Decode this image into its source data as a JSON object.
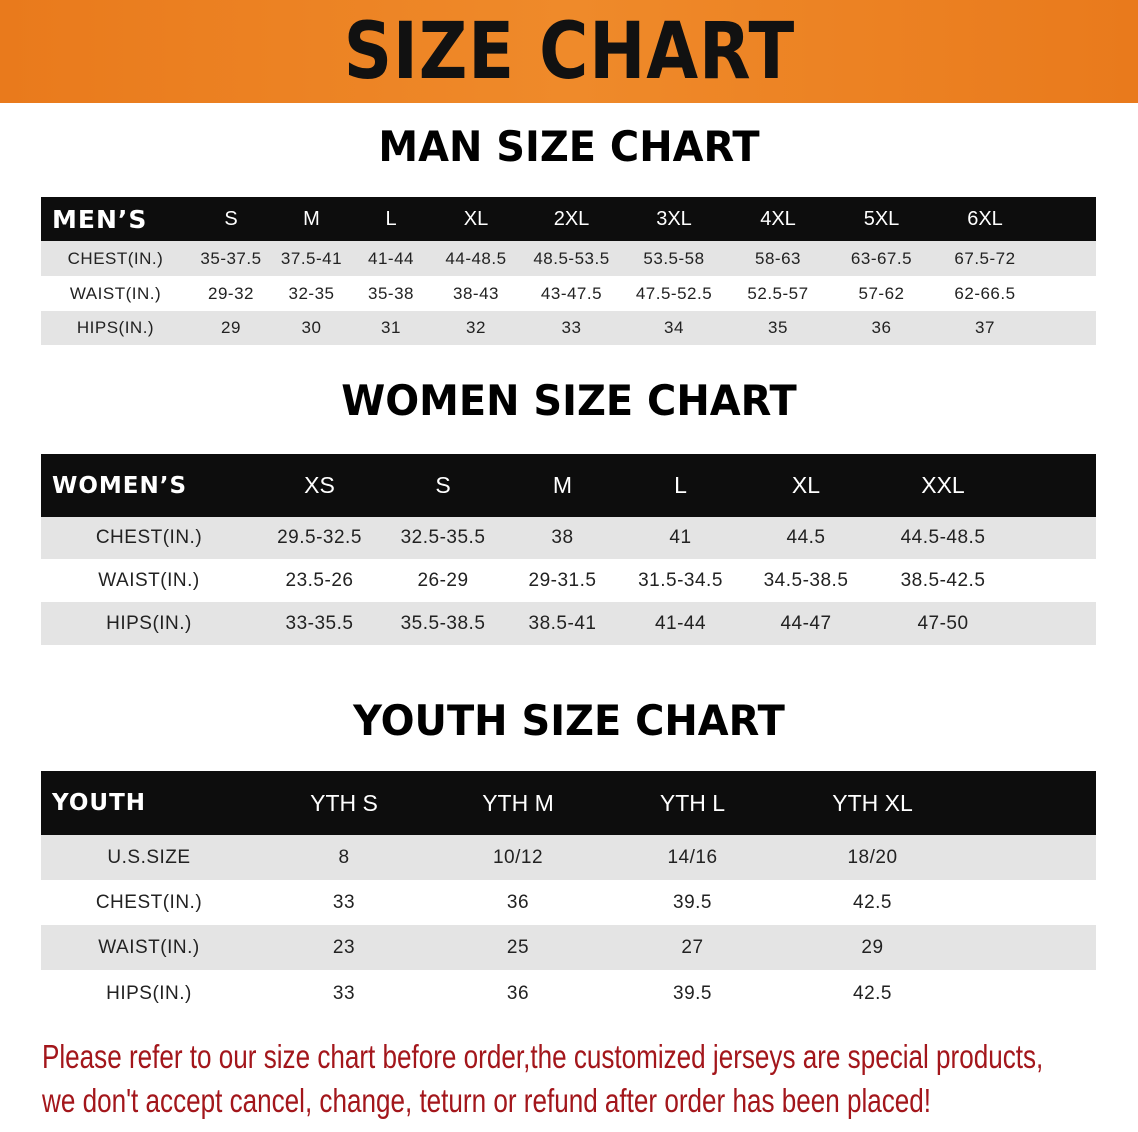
{
  "banner_title": "SIZE CHART",
  "men": {
    "title": "MAN SIZE CHART",
    "header_label": "MEN’S",
    "sizes": [
      "S",
      "M",
      "L",
      "XL",
      "2XL",
      "3XL",
      "4XL",
      "5XL",
      "6XL"
    ],
    "rows": [
      {
        "label": "CHEST(IN.)",
        "values": [
          "35-37.5",
          "37.5-41",
          "41-44",
          "44-48.5",
          "48.5-53.5",
          "53.5-58",
          "58-63",
          "63-67.5",
          "67.5-72"
        ]
      },
      {
        "label": "WAIST(IN.)",
        "values": [
          "29-32",
          "32-35",
          "35-38",
          "38-43",
          "43-47.5",
          "47.5-52.5",
          "52.5-57",
          "57-62",
          "62-66.5"
        ]
      },
      {
        "label": "HIPS(IN.)",
        "values": [
          "29",
          "30",
          "31",
          "32",
          "33",
          "34",
          "35",
          "36",
          "37"
        ]
      }
    ]
  },
  "women": {
    "title": "WOMEN SIZE CHART",
    "header_label": "WOMEN’S",
    "sizes": [
      "XS",
      "S",
      "M",
      "L",
      "XL",
      "XXL"
    ],
    "rows": [
      {
        "label": "CHEST(IN.)",
        "values": [
          "29.5-32.5",
          "32.5-35.5",
          "38",
          "41",
          "44.5",
          "44.5-48.5"
        ]
      },
      {
        "label": "WAIST(IN.)",
        "values": [
          "23.5-26",
          "26-29",
          "29-31.5",
          "31.5-34.5",
          "34.5-38.5",
          "38.5-42.5"
        ]
      },
      {
        "label": "HIPS(IN.)",
        "values": [
          "33-35.5",
          "35.5-38.5",
          "38.5-41",
          "41-44",
          "44-47",
          "47-50"
        ]
      }
    ]
  },
  "youth": {
    "title": "YOUTH SIZE CHART",
    "header_label": "YOUTH",
    "sizes": [
      "YTH S",
      "YTH M",
      "YTH L",
      "YTH XL"
    ],
    "rows": [
      {
        "label": "U.S.SIZE",
        "values": [
          "8",
          "10/12",
          "14/16",
          "18/20"
        ]
      },
      {
        "label": "CHEST(IN.)",
        "values": [
          "33",
          "36",
          "39.5",
          "42.5"
        ]
      },
      {
        "label": "WAIST(IN.)",
        "values": [
          "23",
          "25",
          "27",
          "29"
        ]
      },
      {
        "label": "HIPS(IN.)",
        "values": [
          "33",
          "36",
          "39.5",
          "42.5"
        ]
      }
    ]
  },
  "note_lines": [
    "Please refer to our size chart before order,the customized jerseys are special products,",
    "we don't accept cancel, change, teturn or refund after order has been placed!"
  ],
  "colors": {
    "banner": "#e97a1c",
    "header": "#0d0d0d",
    "stripe": "#e4e4e4",
    "note": "#a3161b"
  }
}
